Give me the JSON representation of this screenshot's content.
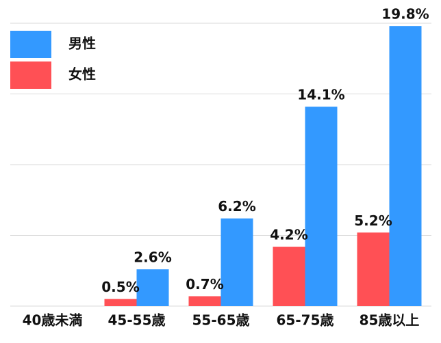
{
  "chart_data": {
    "type": "bar",
    "categories": [
      "40歳未満",
      "45-55歳",
      "55-65歳",
      "65-75歳",
      "85歳以上"
    ],
    "series": [
      {
        "name": "男性",
        "color": "#3399ff",
        "values": [
          null,
          2.6,
          6.2,
          14.1,
          19.8
        ],
        "value_labels": [
          null,
          "2.6%",
          "6.2%",
          "14.1%",
          "19.8%"
        ]
      },
      {
        "name": "女性",
        "color": "#ff5055",
        "values": [
          null,
          0.5,
          0.7,
          4.2,
          5.2
        ],
        "value_labels": [
          null,
          "0.5%",
          "0.7%",
          "4.2%",
          "5.2%"
        ]
      }
    ],
    "ylim": [
      0,
      20
    ],
    "gridlines": [
      0,
      5,
      10,
      15,
      20
    ],
    "legend": "top-left"
  }
}
